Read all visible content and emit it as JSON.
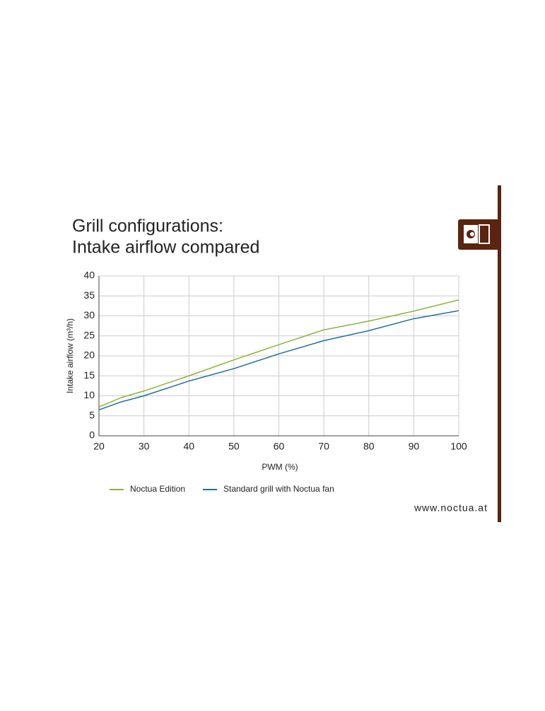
{
  "chart_data": {
    "type": "line",
    "title": [
      "Grill configurations:",
      "Intake airflow compared"
    ],
    "x_label": "PWM (%)",
    "y_label": "Intake airflow (m³/h)",
    "x": [
      20,
      25,
      30,
      40,
      50,
      60,
      70,
      80,
      90,
      100
    ],
    "series": [
      {
        "name": "Noctua Edition",
        "color": "#8db33a",
        "values": [
          7.2,
          9.6,
          11.2,
          15,
          19,
          22.8,
          26.5,
          28.7,
          31.2,
          34
        ]
      },
      {
        "name": "Standard grill with Noctua fan",
        "color": "#1f6fa0",
        "values": [
          6.5,
          8.5,
          10,
          13.7,
          16.8,
          20.5,
          23.8,
          26.3,
          29.3,
          31.3
        ]
      }
    ],
    "xlim": [
      20,
      100
    ],
    "xticks": [
      20,
      30,
      40,
      50,
      60,
      70,
      80,
      90,
      100
    ],
    "ylim": [
      0,
      40
    ],
    "yticks": [
      0,
      5,
      10,
      15,
      20,
      25,
      30,
      35,
      40
    ],
    "grid": true,
    "legend": "bottom",
    "annotation": "www.noctua.at"
  }
}
